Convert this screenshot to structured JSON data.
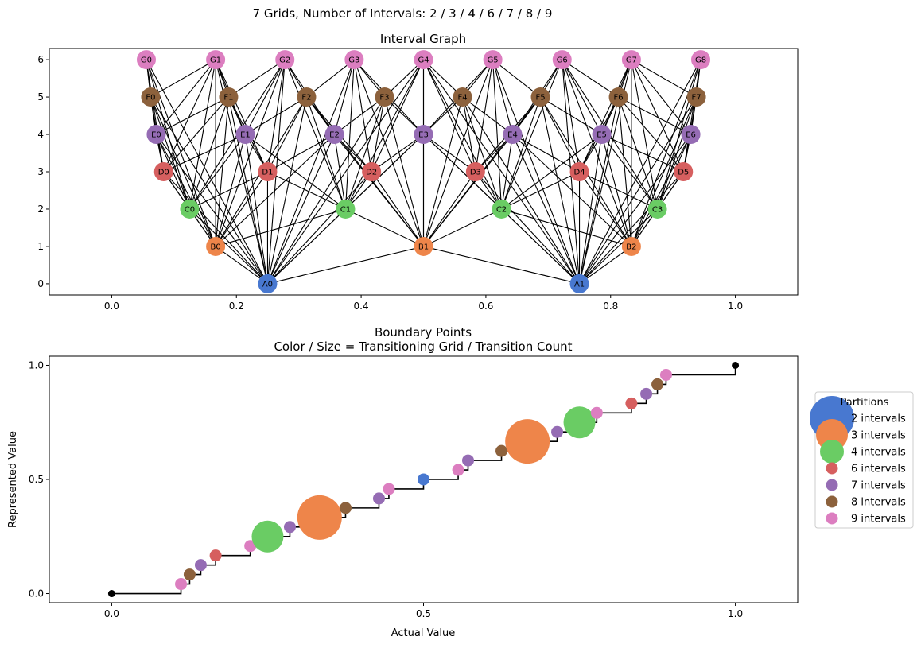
{
  "figure": {
    "suptitle": "7 Grids, Number of Intervals: 2 / 3 / 4 / 6 / 7 / 8 / 9"
  },
  "colors": {
    "2": "#4878d0",
    "3": "#ee854a",
    "4": "#6acc64",
    "6": "#d65f5f",
    "7": "#956cb4",
    "8": "#8c613c",
    "9": "#dc7ec0",
    "edge": "#000000",
    "endpoint": "#000000"
  },
  "chart_data": [
    {
      "type": "network",
      "title": "Interval Graph",
      "xlim": [
        -0.1,
        1.1
      ],
      "ylim": [
        -0.3,
        6.3
      ],
      "xticks": [
        0.0,
        0.2,
        0.4,
        0.6,
        0.8,
        1.0
      ],
      "xtick_labels": [
        "0.0",
        "0.2",
        "0.4",
        "0.6",
        "0.8",
        "1.0"
      ],
      "yticks": [
        0,
        1,
        2,
        3,
        4,
        5,
        6
      ],
      "ytick_labels": [
        "0",
        "1",
        "2",
        "3",
        "4",
        "5",
        "6"
      ],
      "grids": [
        {
          "letter": "A",
          "intervals": 2
        },
        {
          "letter": "B",
          "intervals": 3
        },
        {
          "letter": "C",
          "intervals": 4
        },
        {
          "letter": "D",
          "intervals": 6
        },
        {
          "letter": "E",
          "intervals": 7
        },
        {
          "letter": "F",
          "intervals": 8
        },
        {
          "letter": "G",
          "intervals": 9
        }
      ],
      "node_labels": {
        "A": [
          "A0",
          "A1"
        ],
        "B": [
          "B0",
          "B1",
          "B2"
        ],
        "C": [
          "C0",
          "C1",
          "C2",
          "C3"
        ],
        "D": [
          "D0",
          "D1",
          "D2",
          "D3",
          "D4",
          "D5"
        ],
        "E": [
          "E0",
          "E1",
          "E2",
          "E3",
          "E4",
          "E5",
          "E6"
        ],
        "F": [
          "F0",
          "F1",
          "F2",
          "F3",
          "F4",
          "F5",
          "F6",
          "F7"
        ],
        "G": [
          "G0",
          "G1",
          "G2",
          "G3",
          "G4",
          "G5",
          "G6",
          "G7",
          "G8"
        ]
      },
      "edges": "each pair of intervals from different grids that overlap"
    },
    {
      "type": "scatter",
      "title": "Boundary Points",
      "subtitle": "Color / Size = Transitioning Grid / Transition Count",
      "xlabel": "Actual Value",
      "ylabel": "Represented Value",
      "xlim": [
        -0.1,
        1.1
      ],
      "ylim": [
        -0.04,
        1.04
      ],
      "xticks": [
        0.0,
        0.5,
        1.0
      ],
      "xtick_labels": [
        "0.0",
        "0.5",
        "1.0"
      ],
      "yticks": [
        0.0,
        0.5,
        1.0
      ],
      "ytick_labels": [
        "0.0",
        "0.5",
        "1.0"
      ],
      "endpoints": [
        [
          0.0,
          0.0
        ],
        [
          1.0,
          1.0
        ]
      ],
      "legend": {
        "title": "Partitions",
        "position": "outside-right",
        "entries": [
          {
            "n": 2,
            "label": "2 intervals"
          },
          {
            "n": 3,
            "label": "3 intervals"
          },
          {
            "n": 4,
            "label": "4 intervals"
          },
          {
            "n": 6,
            "label": "6 intervals"
          },
          {
            "n": 7,
            "label": "7 intervals"
          },
          {
            "n": 8,
            "label": "8 intervals"
          },
          {
            "n": 9,
            "label": "9 intervals"
          }
        ]
      },
      "points": "boundaries k/n for n in [2,3,4,6,7,8,9]; color = smallest such n; size = number of grids sharing the boundary"
    }
  ]
}
